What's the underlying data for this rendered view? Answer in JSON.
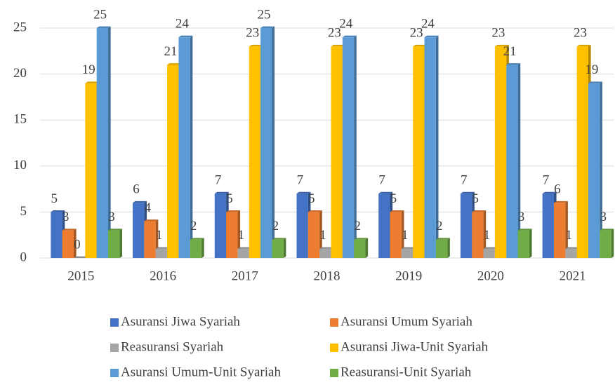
{
  "chart_data": {
    "type": "bar",
    "categories": [
      "2015",
      "2016",
      "2017",
      "2018",
      "2019",
      "2020",
      "2021"
    ],
    "series": [
      {
        "name": "Asuransi Jiwa Syariah",
        "color": "#4472c4",
        "values": [
          5,
          6,
          7,
          7,
          7,
          7,
          7
        ]
      },
      {
        "name": "Asuransi Umum Syariah",
        "color": "#ed7d31",
        "values": [
          3,
          4,
          5,
          5,
          5,
          5,
          6
        ]
      },
      {
        "name": "Reasuransi Syariah",
        "color": "#a5a5a5",
        "values": [
          0,
          1,
          1,
          1,
          1,
          1,
          1
        ]
      },
      {
        "name": "Asuransi Jiwa-Unit Syariah",
        "color": "#ffc000",
        "values": [
          19,
          21,
          23,
          23,
          23,
          23,
          23
        ]
      },
      {
        "name": "Asuransi Umum-Unit Syariah",
        "color": "#5b9bd5",
        "values": [
          25,
          24,
          25,
          24,
          24,
          21,
          19
        ]
      },
      {
        "name": "Reasuransi-Unit Syariah",
        "color": "#70ad47",
        "values": [
          3,
          2,
          2,
          2,
          2,
          3,
          3
        ]
      }
    ],
    "ylim": [
      0,
      25
    ],
    "yticks": [
      0,
      5,
      10,
      15,
      20,
      25
    ],
    "grid": true,
    "legend": "bottom"
  }
}
